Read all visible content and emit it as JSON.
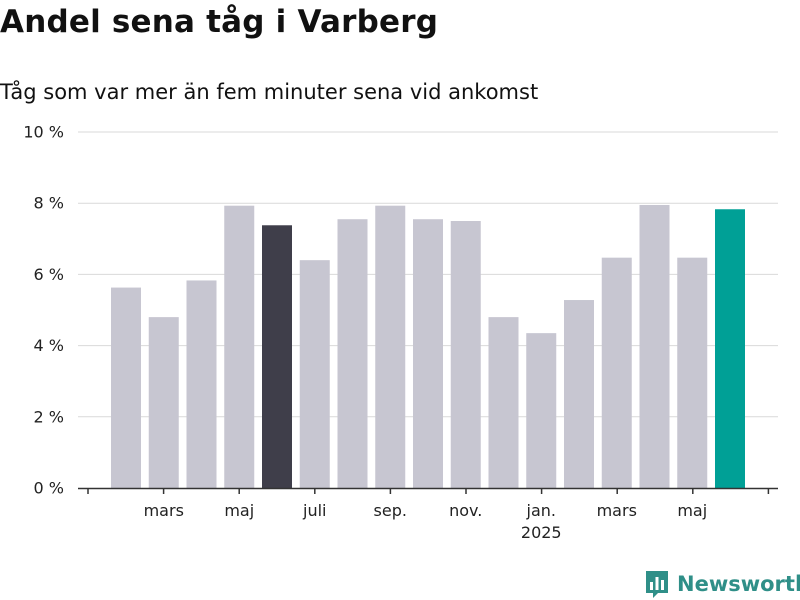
{
  "title": "Andel sena tåg i Varberg",
  "subtitle": "Tåg som var mer än fem minuter sena vid ankomst",
  "brand": "Newsworthy",
  "colors": {
    "bar": "#c7c6d1",
    "highlight_dark": "#3f3e4a",
    "highlight_accent": "#00a096",
    "grid": "#d9d9d9",
    "axis": "#333333",
    "brand": "#2f8f88"
  },
  "chart_data": {
    "type": "bar",
    "title": "Andel sena tåg i Varberg",
    "subtitle": "Tåg som var mer än fem minuter sena vid ankomst",
    "xlabel": "",
    "ylabel": "",
    "ylim": [
      0,
      10
    ],
    "grid": true,
    "legend": "none",
    "y_ticks": [
      {
        "value": 0,
        "label": "0 %"
      },
      {
        "value": 2,
        "label": "2 %"
      },
      {
        "value": 4,
        "label": "4 %"
      },
      {
        "value": 6,
        "label": "6 %"
      },
      {
        "value": 8,
        "label": "8 %"
      },
      {
        "value": 10,
        "label": "10 %"
      }
    ],
    "values": [
      5.63,
      4.8,
      5.83,
      7.93,
      7.38,
      6.4,
      7.55,
      7.93,
      7.55,
      7.5,
      4.8,
      4.35,
      5.28,
      6.47,
      7.95,
      6.47,
      7.83
    ],
    "highlight": {
      "4": "highlight_dark",
      "16": "highlight_accent"
    },
    "x_ticks": [
      {
        "index": 1,
        "label": "mars"
      },
      {
        "index": 3,
        "label": "maj"
      },
      {
        "index": 5,
        "label": "juli"
      },
      {
        "index": 7,
        "label": "sep."
      },
      {
        "index": 9,
        "label": "nov."
      },
      {
        "index": 11,
        "label": "jan.",
        "sub": "2025"
      },
      {
        "index": 13,
        "label": "mars"
      },
      {
        "index": 15,
        "label": "maj"
      }
    ]
  }
}
